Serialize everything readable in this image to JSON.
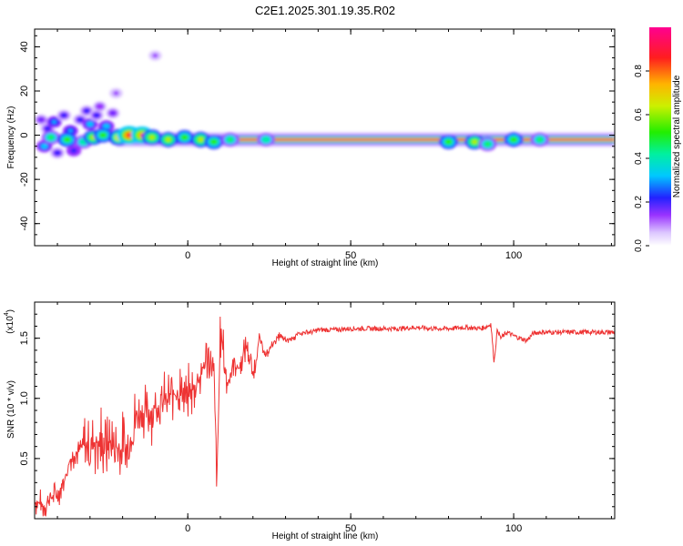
{
  "title": "C2E1.2025.301.19.35.R02",
  "chart_data": [
    {
      "type": "heatmap",
      "name": "spectrogram",
      "xlabel": "Height of straight line (km)",
      "ylabel": "Frequency (Hz)",
      "xlim": [
        -47,
        131
      ],
      "ylim": [
        -50,
        48
      ],
      "x_ticks": [
        0,
        50,
        100
      ],
      "y_ticks": [
        40,
        20,
        0,
        -20,
        -40
      ],
      "tick_labels_x": [
        "0",
        "50",
        "100"
      ],
      "tick_labels_y": [
        "40",
        "20",
        "0",
        "-20",
        "-40"
      ],
      "colorbar": {
        "label": "Normalized spectral amplitude",
        "range": [
          0,
          1
        ],
        "ticks": [
          0,
          0.2,
          0.4,
          0.6,
          0.8
        ],
        "tick_labels": [
          "0.0",
          "0.2",
          "0.4",
          "0.6",
          "0.8"
        ]
      },
      "carrier_frequency_hz": -2,
      "blobs": [
        {
          "x": -45,
          "y": 7,
          "a": 0.15
        },
        {
          "x": -43,
          "y": 3,
          "a": 0.2
        },
        {
          "x": -41,
          "y": 6,
          "a": 0.25
        },
        {
          "x": -44,
          "y": -5,
          "a": 0.3
        },
        {
          "x": -40,
          "y": -8,
          "a": 0.2
        },
        {
          "x": -38,
          "y": 9,
          "a": 0.18
        },
        {
          "x": -36,
          "y": 2,
          "a": 0.25
        },
        {
          "x": -35,
          "y": -7,
          "a": 0.22
        },
        {
          "x": -33,
          "y": 7,
          "a": 0.2
        },
        {
          "x": -31,
          "y": 11,
          "a": 0.18
        },
        {
          "x": -30,
          "y": 5,
          "a": 0.28
        },
        {
          "x": -28,
          "y": 9,
          "a": 0.2
        },
        {
          "x": -27,
          "y": 13,
          "a": 0.12
        },
        {
          "x": -25,
          "y": 4,
          "a": 0.3
        },
        {
          "x": -23,
          "y": 10,
          "a": 0.15
        },
        {
          "x": -22,
          "y": 19,
          "a": 0.1
        },
        {
          "x": -42,
          "y": -1,
          "a": 0.45
        },
        {
          "x": -37,
          "y": -2,
          "a": 0.5
        },
        {
          "x": -32,
          "y": -3,
          "a": 0.4
        },
        {
          "x": -29,
          "y": -1,
          "a": 0.55
        },
        {
          "x": -26,
          "y": 0,
          "a": 0.5
        },
        {
          "x": -21,
          "y": -1,
          "a": 0.7
        },
        {
          "x": -18,
          "y": 0,
          "a": 0.85
        },
        {
          "x": -14,
          "y": 0,
          "a": 0.75
        },
        {
          "x": -11,
          "y": -1,
          "a": 0.6
        },
        {
          "x": -10,
          "y": 36,
          "a": 0.08
        },
        {
          "x": -6,
          "y": -2,
          "a": 0.55
        },
        {
          "x": -1,
          "y": -1,
          "a": 0.5
        },
        {
          "x": 4,
          "y": -2,
          "a": 0.6
        },
        {
          "x": 8,
          "y": -3,
          "a": 0.5
        },
        {
          "x": 13,
          "y": -2,
          "a": 0.45
        },
        {
          "x": 24,
          "y": -2,
          "a": 0.4
        },
        {
          "x": 80,
          "y": -3,
          "a": 0.5
        },
        {
          "x": 88,
          "y": -3,
          "a": 0.55
        },
        {
          "x": 92,
          "y": -4,
          "a": 0.45
        },
        {
          "x": 100,
          "y": -2,
          "a": 0.5
        },
        {
          "x": 108,
          "y": -2,
          "a": 0.45
        }
      ]
    },
    {
      "type": "line",
      "name": "snr",
      "xlabel": "Height of straight line (km)",
      "ylabel": "SNR (10 * v/v)",
      "scale_label": "(x10",
      "scale_exponent": "4",
      "xlim": [
        -47,
        131
      ],
      "ylim": [
        0,
        1.8
      ],
      "x_ticks": [
        0,
        50,
        100
      ],
      "y_ticks": [
        0.5,
        1.0,
        1.5
      ],
      "tick_labels_x": [
        "0",
        "50",
        "100"
      ],
      "tick_labels_y": [
        "0.5",
        "1.0",
        "1.5"
      ],
      "series": [
        {
          "name": "SNR",
          "color": "#ee3333",
          "x": [
            -47,
            -44,
            -42,
            -40,
            -38,
            -36,
            -34,
            -32,
            -30,
            -28,
            -26,
            -24,
            -22,
            -20,
            -18,
            -16,
            -14,
            -12,
            -10,
            -8,
            -6,
            -4,
            -2,
            0,
            2,
            4,
            6,
            8,
            9,
            10,
            12,
            14,
            16,
            18,
            20,
            22,
            24,
            26,
            28,
            30,
            32,
            34,
            36,
            38,
            40,
            45,
            50,
            55,
            60,
            65,
            70,
            75,
            80,
            85,
            90,
            92,
            93,
            94,
            95,
            96,
            98,
            100,
            102,
            104,
            106,
            108,
            110,
            115,
            120,
            125,
            131
          ],
          "y": [
            0.15,
            0.1,
            0.18,
            0.2,
            0.3,
            0.5,
            0.55,
            0.6,
            0.62,
            0.65,
            0.6,
            0.62,
            0.6,
            0.55,
            0.6,
            0.85,
            0.9,
            0.88,
            0.92,
            0.95,
            1.0,
            1.05,
            1.05,
            1.0,
            1.1,
            1.2,
            1.35,
            1.2,
            0.3,
            1.6,
            1.1,
            1.3,
            1.25,
            1.45,
            1.2,
            1.5,
            1.35,
            1.45,
            1.52,
            1.48,
            1.5,
            1.53,
            1.55,
            1.55,
            1.57,
            1.57,
            1.58,
            1.58,
            1.58,
            1.58,
            1.59,
            1.58,
            1.58,
            1.59,
            1.58,
            1.6,
            1.62,
            1.3,
            1.58,
            1.5,
            1.55,
            1.52,
            1.5,
            1.48,
            1.54,
            1.55,
            1.55,
            1.55,
            1.55,
            1.55,
            1.55
          ]
        }
      ]
    }
  ]
}
